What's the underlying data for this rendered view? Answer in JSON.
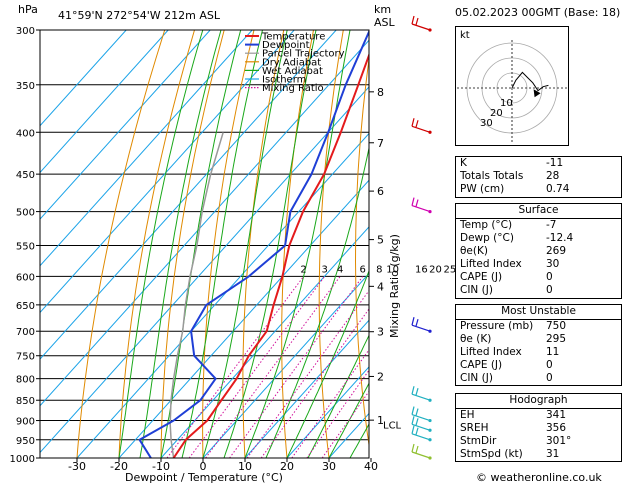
{
  "header": {
    "location": "41°59'N  272°54'W  212m  ASL",
    "datetime": "05.02.2023  00GMT  (Base: 18)",
    "y_unit_left": "hPa",
    "y_unit_right_km": "km",
    "y_unit_right_asl": "ASL"
  },
  "chart_data": {
    "type": "line",
    "xlabel": "Dewpoint / Temperature (°C)",
    "ylabel_right": "Mixing Ratio (g/kg)",
    "pressure_levels": [
      300,
      350,
      400,
      450,
      500,
      550,
      600,
      650,
      700,
      750,
      800,
      850,
      900,
      950,
      1000
    ],
    "x_ticks": [
      -30,
      -20,
      -10,
      0,
      10,
      20,
      30,
      40
    ],
    "km_ticks": [
      {
        "label": "8",
        "p": 357
      },
      {
        "label": "7",
        "p": 412
      },
      {
        "label": "6",
        "p": 472
      },
      {
        "label": "5",
        "p": 541
      },
      {
        "label": "4",
        "p": 617
      },
      {
        "label": "3",
        "p": 701
      },
      {
        "label": "2",
        "p": 795
      },
      {
        "label": "1",
        "p": 899
      }
    ],
    "lcl_label": "LCL",
    "lcl_p": 910,
    "mixing_ratio_labels": [
      "2",
      "3",
      "4",
      "6",
      "8",
      "10",
      "16",
      "20",
      "25"
    ],
    "mixing_ratio_values": [
      2,
      3,
      4,
      6,
      8,
      10,
      16,
      20,
      25
    ],
    "legend": [
      "Temperature",
      "Dewpoint",
      "Parcel Trajectory",
      "Dry Adiabat",
      "Wet Adiabat",
      "Isotherm",
      "Mixing Ratio"
    ],
    "colors": {
      "temperature": "#e41a1c",
      "dewpoint": "#1f3fd6",
      "parcel": "#999999",
      "dry_adiabat": "#e08a00",
      "wet_adiabat": "#1aa81a",
      "isotherm": "#1aa3e8",
      "mixing_ratio": "#d0109a"
    },
    "series": [
      {
        "name": "Temperature",
        "points": [
          [
            1000,
            -7
          ],
          [
            950,
            -8
          ],
          [
            900,
            -7
          ],
          [
            850,
            -8
          ],
          [
            800,
            -9
          ],
          [
            750,
            -11
          ],
          [
            700,
            -12
          ],
          [
            650,
            -16
          ],
          [
            600,
            -20
          ],
          [
            550,
            -25
          ],
          [
            500,
            -29
          ],
          [
            450,
            -32
          ],
          [
            400,
            -37
          ],
          [
            350,
            -43
          ],
          [
            300,
            -50
          ]
        ]
      },
      {
        "name": "Dewpoint",
        "points": [
          [
            1000,
            -12.4
          ],
          [
            950,
            -19
          ],
          [
            900,
            -15
          ],
          [
            850,
            -13
          ],
          [
            800,
            -14
          ],
          [
            750,
            -24
          ],
          [
            700,
            -30
          ],
          [
            650,
            -32
          ],
          [
            600,
            -28
          ],
          [
            550,
            -26
          ],
          [
            500,
            -32
          ],
          [
            450,
            -35
          ],
          [
            400,
            -40
          ],
          [
            350,
            -46
          ],
          [
            300,
            -52
          ]
        ]
      },
      {
        "name": "Parcel Trajectory",
        "points": [
          [
            1000,
            -7
          ],
          [
            950,
            -11.5
          ],
          [
            910,
            -15
          ],
          [
            850,
            -20
          ],
          [
            800,
            -24
          ],
          [
            750,
            -28
          ],
          [
            700,
            -32
          ],
          [
            650,
            -37
          ],
          [
            600,
            -42
          ],
          [
            550,
            -47
          ],
          [
            500,
            -53
          ],
          [
            450,
            -59
          ],
          [
            400,
            -65
          ]
        ]
      }
    ],
    "wind_barbs_p": [
      300,
      400,
      500,
      700,
      850,
      900,
      925,
      950,
      1000
    ]
  },
  "hodograph": {
    "label": "kt",
    "rings": [
      "10",
      "20",
      "30"
    ],
    "trace": [
      [
        0,
        0
      ],
      [
        3,
        6
      ],
      [
        8,
        12
      ],
      [
        12,
        8
      ],
      [
        16,
        4
      ],
      [
        20,
        -2
      ],
      [
        24,
        1
      ],
      [
        28,
        2
      ]
    ],
    "storm_motion": [
      22,
      -4
    ]
  },
  "indices": [
    {
      "label": "K",
      "value": "-11"
    },
    {
      "label": "Totals Totals",
      "value": "28"
    },
    {
      "label": "PW (cm)",
      "value": "0.74"
    }
  ],
  "surface": {
    "title": "Surface",
    "rows": [
      {
        "label": "Temp (°C)",
        "value": "-7"
      },
      {
        "label": "Dewp (°C)",
        "value": "-12.4"
      },
      {
        "label": "θe(K)",
        "value": "269"
      },
      {
        "label": "Lifted Index",
        "value": "30"
      },
      {
        "label": "CAPE (J)",
        "value": "0"
      },
      {
        "label": "CIN (J)",
        "value": "0"
      }
    ]
  },
  "most_unstable": {
    "title": "Most Unstable",
    "rows": [
      {
        "label": "Pressure (mb)",
        "value": "750"
      },
      {
        "label": "θe (K)",
        "value": "295"
      },
      {
        "label": "Lifted Index",
        "value": "11"
      },
      {
        "label": "CAPE (J)",
        "value": "0"
      },
      {
        "label": "CIN (J)",
        "value": "0"
      }
    ]
  },
  "hodograph_table": {
    "title": "Hodograph",
    "rows": [
      {
        "label": "EH",
        "value": "341"
      },
      {
        "label": "SREH",
        "value": "356"
      },
      {
        "label": "StmDir",
        "value": "301°"
      },
      {
        "label": "StmSpd (kt)",
        "value": "31"
      }
    ]
  },
  "footer": "© weatheronline.co.uk"
}
